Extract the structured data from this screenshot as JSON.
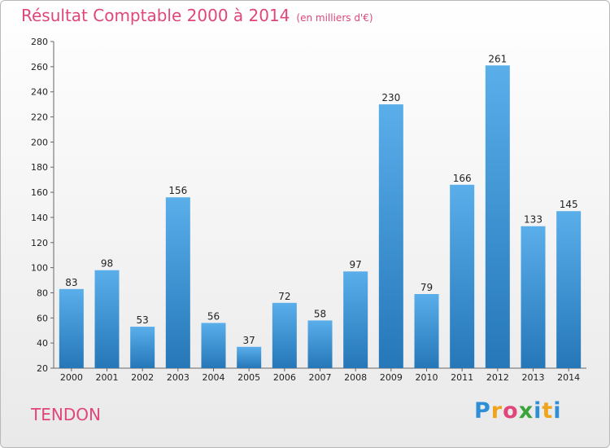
{
  "title": "Résultat Comptable 2000 à 2014",
  "subtitle": "(en milliers d'€)",
  "commune": "TENDON",
  "logo": {
    "letters": [
      "P",
      "r",
      "o",
      "x",
      "i",
      "t",
      "i"
    ],
    "colors": [
      "#2f8fd6",
      "#f0a31c",
      "#e0467a",
      "#3aa33a",
      "#2f8fd6",
      "#f0a31c",
      "#2f8fd6"
    ]
  },
  "colors": {
    "bar": "#3d96d9",
    "title": "#e0467a"
  },
  "chart_data": {
    "type": "bar",
    "categories": [
      "2000",
      "2001",
      "2002",
      "2003",
      "2004",
      "2005",
      "2006",
      "2007",
      "2008",
      "2009",
      "2010",
      "2011",
      "2012",
      "2013",
      "2014"
    ],
    "values": [
      83,
      98,
      53,
      156,
      56,
      37,
      72,
      58,
      97,
      230,
      79,
      166,
      261,
      133,
      145
    ],
    "ylim": [
      20,
      280
    ],
    "yticks": [
      20,
      40,
      60,
      80,
      100,
      120,
      140,
      160,
      180,
      200,
      220,
      240,
      260,
      280
    ],
    "grid": false,
    "data_labels": true
  }
}
